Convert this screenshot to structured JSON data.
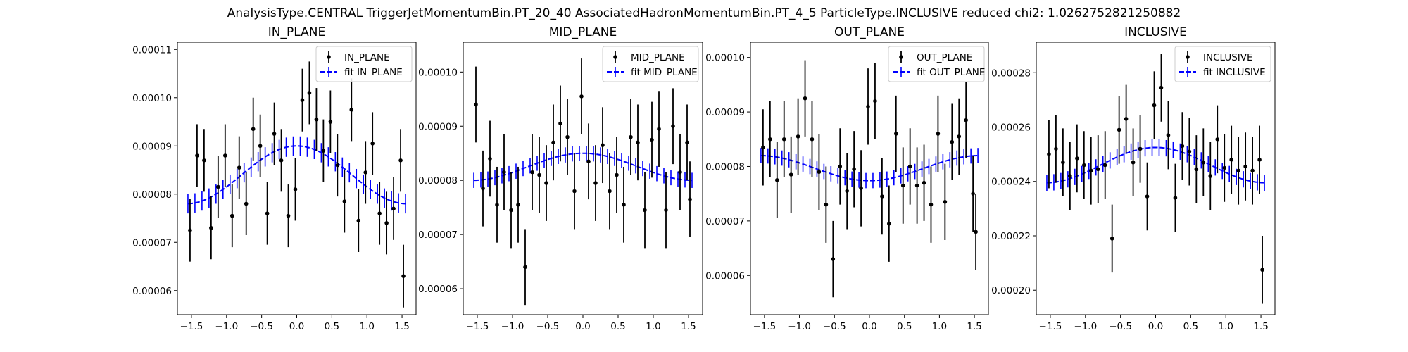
{
  "figure": {
    "suptitle": "AnalysisType.CENTRAL TriggerJetMomentumBin.PT_20_40 AssociatedHadronMomentumBin.PT_4_5 ParticleType.INCLUSIVE reduced chi2: 1.0262752821250882"
  },
  "colors": {
    "data": "#000000",
    "fit": "#0000ff",
    "axes": "#000000"
  },
  "chart_data": [
    {
      "type": "scatter",
      "title": "IN_PLANE",
      "xlabel": "",
      "ylabel": "",
      "xlim": [
        -1.7,
        1.7
      ],
      "ylim": [
        5.5e-05,
        0.0001115
      ],
      "xticks": [
        -1.5,
        -1.0,
        -0.5,
        0.0,
        0.5,
        1.0,
        1.5
      ],
      "xtick_labels": [
        "−1.5",
        "−1.0",
        "−0.5",
        "0.0",
        "0.5",
        "1.0",
        "1.5"
      ],
      "yticks": [
        6e-05,
        7e-05,
        8e-05,
        9e-05,
        0.0001,
        0.00011
      ],
      "ytick_labels": [
        "0.00006",
        "0.00007",
        "0.00008",
        "0.00009",
        "0.00010",
        "0.00011"
      ],
      "legend": {
        "position": "top-right",
        "entries": [
          "IN_PLANE",
          "fit IN_PLANE"
        ]
      },
      "x": [
        -1.52,
        -1.42,
        -1.32,
        -1.22,
        -1.12,
        -1.02,
        -0.92,
        -0.82,
        -0.72,
        -0.62,
        -0.52,
        -0.42,
        -0.32,
        -0.22,
        -0.12,
        -0.02,
        0.08,
        0.18,
        0.28,
        0.38,
        0.48,
        0.58,
        0.68,
        0.78,
        0.88,
        0.98,
        1.08,
        1.18,
        1.28,
        1.38,
        1.48,
        1.52
      ],
      "series": [
        {
          "name": "IN_PLANE",
          "y": [
            7.25e-05,
            8.8e-05,
            8.7e-05,
            7.3e-05,
            8.15e-05,
            8.8e-05,
            7.55e-05,
            8.55e-05,
            7.8e-05,
            9.35e-05,
            9e-05,
            7.6e-05,
            9.25e-05,
            8.7e-05,
            7.55e-05,
            8.1e-05,
            9.95e-05,
            0.000101,
            9.55e-05,
            8.9e-05,
            9.5e-05,
            8.6e-05,
            7.85e-05,
            9.75e-05,
            7.45e-05,
            8.45e-05,
            9.05e-05,
            7.6e-05,
            7.4e-05,
            7.7e-05,
            8.7e-05,
            6.3e-05
          ],
          "yerr": 6.5e-06
        },
        {
          "name": "fit IN_PLANE",
          "base": 8.4e-05,
          "amp": 6e-06,
          "n_errbars": 32,
          "yerr": 2e-06
        }
      ]
    },
    {
      "type": "scatter",
      "title": "MID_PLANE",
      "xlabel": "",
      "ylabel": "",
      "xlim": [
        -1.7,
        1.7
      ],
      "ylim": [
        5.52e-05,
        0.0001055
      ],
      "xticks": [
        -1.5,
        -1.0,
        -0.5,
        0.0,
        0.5,
        1.0,
        1.5
      ],
      "xtick_labels": [
        "−1.5",
        "−1.0",
        "−0.5",
        "0.0",
        "0.5",
        "1.0",
        "1.5"
      ],
      "yticks": [
        6e-05,
        7e-05,
        8e-05,
        9e-05,
        0.0001
      ],
      "ytick_labels": [
        "0.00006",
        "0.00007",
        "0.00008",
        "0.00009",
        "0.00010"
      ],
      "legend": {
        "position": "top-right",
        "entries": [
          "MID_PLANE",
          "fit MID_PLANE"
        ]
      },
      "x": [
        -1.52,
        -1.42,
        -1.32,
        -1.22,
        -1.12,
        -1.02,
        -0.92,
        -0.82,
        -0.72,
        -0.62,
        -0.52,
        -0.42,
        -0.32,
        -0.22,
        -0.12,
        -0.02,
        0.08,
        0.18,
        0.28,
        0.38,
        0.48,
        0.58,
        0.68,
        0.78,
        0.88,
        0.98,
        1.08,
        1.18,
        1.28,
        1.38,
        1.48,
        1.52
      ],
      "series": [
        {
          "name": "MID_PLANE",
          "y": [
            9.4e-05,
            7.85e-05,
            8.4e-05,
            7.55e-05,
            8.15e-05,
            7.45e-05,
            7.55e-05,
            6.4e-05,
            8.15e-05,
            8.1e-05,
            7.95e-05,
            8.7e-05,
            9.05e-05,
            8.8e-05,
            7.8e-05,
            9.55e-05,
            8.35e-05,
            7.95e-05,
            8.65e-05,
            7.8e-05,
            8.1e-05,
            7.55e-05,
            8.8e-05,
            8.7e-05,
            7.45e-05,
            8.75e-05,
            8.95e-05,
            7.45e-05,
            9e-05,
            8.15e-05,
            8.7e-05,
            7.65e-05
          ],
          "yerr": 7e-06
        },
        {
          "name": "fit MID_PLANE",
          "base": 8.25e-05,
          "amp": 2.5e-06,
          "n_errbars": 32,
          "yerr": 1.4e-06
        }
      ]
    },
    {
      "type": "scatter",
      "title": "OUT_PLANE",
      "xlabel": "",
      "ylabel": "",
      "xlim": [
        -1.7,
        1.7
      ],
      "ylim": [
        5.28e-05,
        0.0001028
      ],
      "xticks": [
        -1.5,
        -1.0,
        -0.5,
        0.0,
        0.5,
        1.0,
        1.5
      ],
      "xtick_labels": [
        "−1.5",
        "−1.0",
        "−0.5",
        "0.0",
        "0.5",
        "1.0",
        "1.5"
      ],
      "yticks": [
        6e-05,
        7e-05,
        8e-05,
        9e-05,
        0.0001
      ],
      "ytick_labels": [
        "0.00006",
        "0.00007",
        "0.00008",
        "0.00009",
        "0.00010"
      ],
      "legend": {
        "position": "top-right",
        "entries": [
          "OUT_PLANE",
          "fit OUT_PLANE"
        ]
      },
      "x": [
        -1.52,
        -1.42,
        -1.32,
        -1.22,
        -1.12,
        -1.02,
        -0.92,
        -0.82,
        -0.72,
        -0.62,
        -0.52,
        -0.42,
        -0.32,
        -0.22,
        -0.12,
        -0.02,
        0.08,
        0.18,
        0.28,
        0.38,
        0.48,
        0.58,
        0.68,
        0.78,
        0.88,
        0.98,
        1.08,
        1.18,
        1.28,
        1.38,
        1.48,
        1.52
      ],
      "series": [
        {
          "name": "OUT_PLANE",
          "y": [
            8.35e-05,
            8.5e-05,
            7.75e-05,
            8.5e-05,
            7.85e-05,
            8.55e-05,
            9.25e-05,
            8.5e-05,
            7.9e-05,
            7.3e-05,
            6.3e-05,
            8e-05,
            7.55e-05,
            7.95e-05,
            7.6e-05,
            9.1e-05,
            9.2e-05,
            7.45e-05,
            6.95e-05,
            8.6e-05,
            7.65e-05,
            8e-05,
            7.65e-05,
            7.7e-05,
            7.3e-05,
            8.6e-05,
            7.35e-05,
            8.45e-05,
            8.55e-05,
            8.85e-05,
            7.5e-05,
            6.8e-05
          ],
          "yerr": 7e-06
        },
        {
          "name": "fit OUT_PLANE",
          "base": 7.97e-05,
          "amp": -2.3e-06,
          "n_errbars": 32,
          "yerr": 1.4e-06
        }
      ]
    },
    {
      "type": "scatter",
      "title": "INCLUSIVE",
      "xlabel": "",
      "ylabel": "",
      "xlim": [
        -1.7,
        1.7
      ],
      "ylim": [
        0.000191,
        0.0002912
      ],
      "xticks": [
        -1.5,
        -1.0,
        -0.5,
        0.0,
        0.5,
        1.0,
        1.5
      ],
      "xtick_labels": [
        "−1.5",
        "−1.0",
        "−0.5",
        "0.0",
        "0.5",
        "1.0",
        "1.5"
      ],
      "yticks": [
        0.0002,
        0.00022,
        0.00024,
        0.00026,
        0.00028
      ],
      "ytick_labels": [
        "0.00020",
        "0.00022",
        "0.00024",
        "0.00026",
        "0.00028"
      ],
      "legend": {
        "position": "top-right",
        "entries": [
          "INCLUSIVE",
          "fit INCLUSIVE"
        ]
      },
      "x": [
        -1.52,
        -1.42,
        -1.32,
        -1.22,
        -1.12,
        -1.02,
        -0.92,
        -0.82,
        -0.72,
        -0.62,
        -0.52,
        -0.42,
        -0.32,
        -0.22,
        -0.12,
        -0.02,
        0.08,
        0.18,
        0.28,
        0.38,
        0.48,
        0.58,
        0.68,
        0.78,
        0.88,
        0.98,
        1.08,
        1.18,
        1.28,
        1.38,
        1.48,
        1.52
      ],
      "series": [
        {
          "name": "INCLUSIVE",
          "y": [
            0.00025,
            0.000252,
            0.000247,
            0.000242,
            0.0002485,
            0.000246,
            0.000244,
            0.0002445,
            0.000246,
            0.000219,
            0.000259,
            0.000263,
            0.000247,
            0.000252,
            0.0002345,
            0.000268,
            0.0002745,
            0.000257,
            0.000234,
            0.000253,
            0.000251,
            0.0002445,
            0.000247,
            0.000242,
            0.0002555,
            0.000245,
            0.000248,
            0.000244,
            0.0002455,
            0.000244,
            0.000248,
            0.0002075
          ],
          "yerr": 1.25e-05
        },
        {
          "name": "fit INCLUSIVE",
          "base": 0.000246,
          "amp": 6.5e-06,
          "n_errbars": 32,
          "yerr": 3e-06
        }
      ]
    }
  ]
}
